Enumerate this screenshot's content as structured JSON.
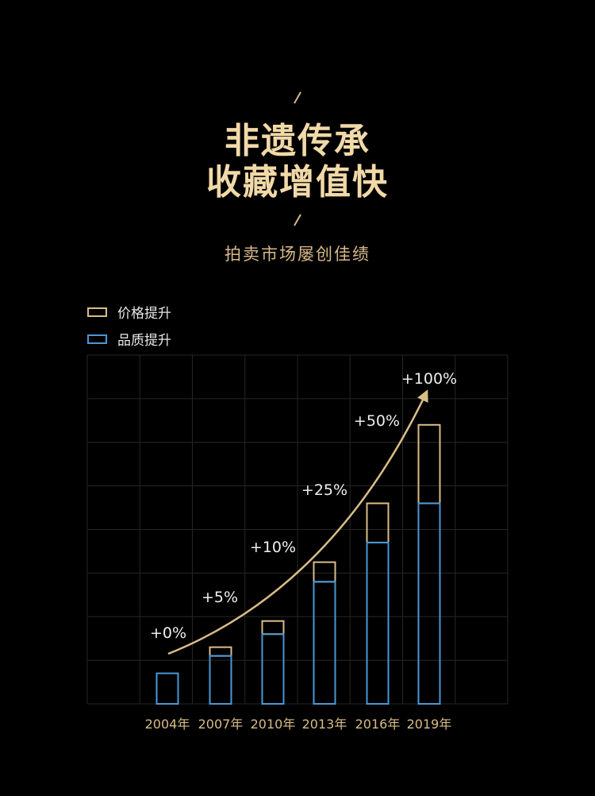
{
  "header": {
    "title_line1": "非遗传承",
    "title_line2": "收藏增值快",
    "subtitle": "拍卖市场屡创佳绩"
  },
  "colors": {
    "price": "#d9bd87",
    "quality": "#4a97d6",
    "accent": "#f1d9a8",
    "grid": "#262626"
  },
  "chart_data": {
    "type": "bar",
    "stacked": true,
    "categories": [
      "2004年",
      "2007年",
      "2010年",
      "2013年",
      "2016年",
      "2019年"
    ],
    "series": [
      {
        "name": "品质提升",
        "values": [
          0.7,
          1.1,
          1.6,
          2.8,
          3.7,
          4.6
        ]
      },
      {
        "name": "价格提升",
        "values": [
          0,
          0.2,
          0.3,
          0.45,
          0.9,
          1.8
        ]
      }
    ],
    "growth_labels": [
      "+0%",
      "+5%",
      "+10%",
      "+25%",
      "+50%",
      "+100%"
    ],
    "ylim": [
      0,
      8
    ],
    "grid": true,
    "legend": "top-left"
  }
}
